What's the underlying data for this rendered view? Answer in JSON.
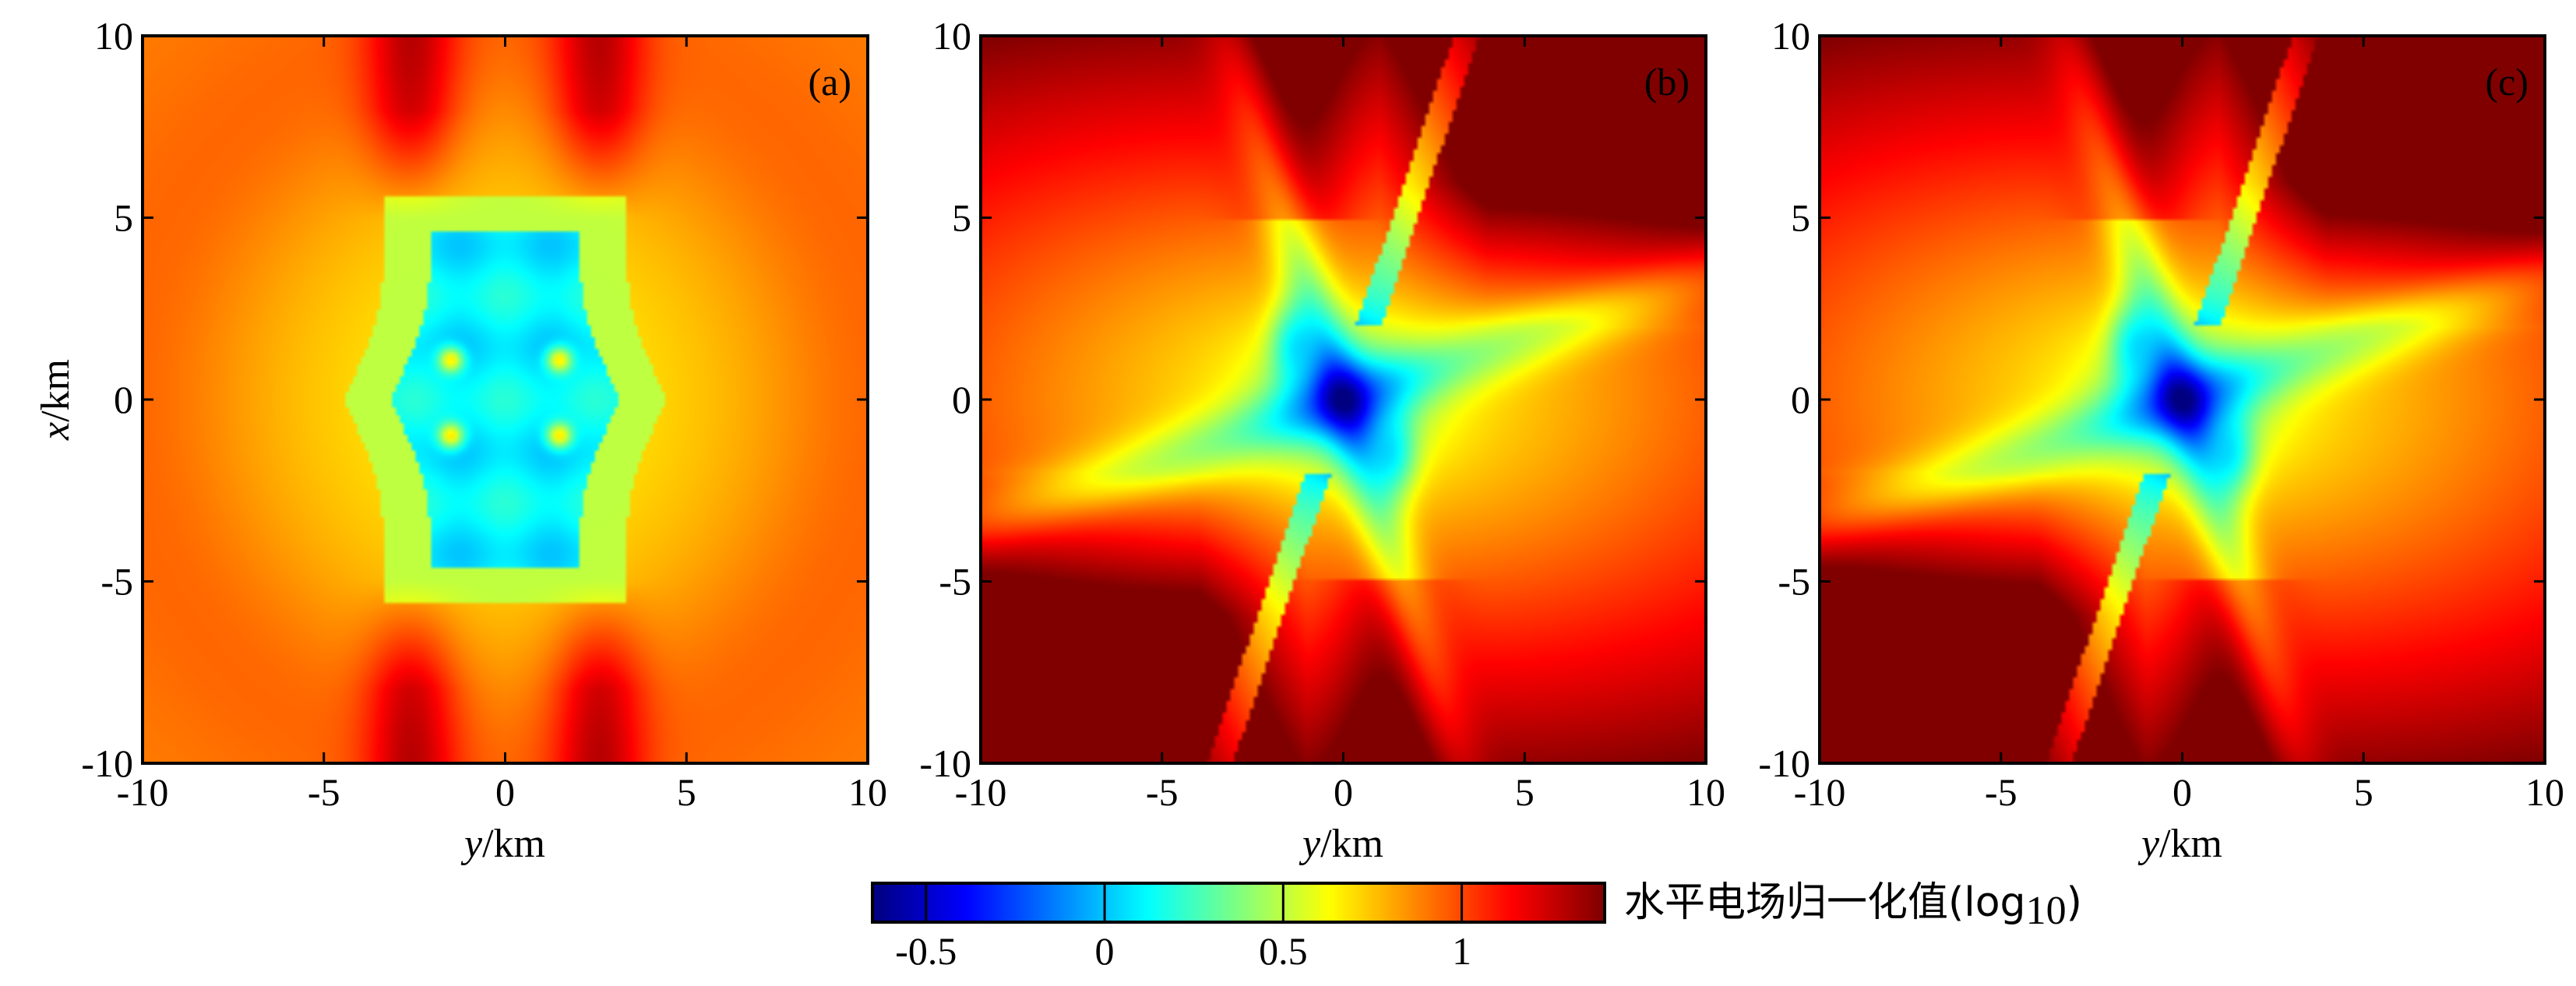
{
  "chart_data": {
    "type": "heatmap",
    "colormap": "jet",
    "color_range": [
      -0.65,
      1.4
    ],
    "panels": [
      {
        "label": "(a)",
        "xlabel_var": "y",
        "xlabel_unit": "/km",
        "ylabel_var": "x",
        "ylabel_unit": "/km",
        "xlim": [
          -10,
          10
        ],
        "ylim": [
          -10,
          10
        ],
        "xticks": [
          "-10",
          "-5",
          "0",
          "5",
          "10"
        ],
        "yticks": [
          "10",
          "5",
          "0",
          "-5",
          "-10"
        ],
        "pattern": "symmetric"
      },
      {
        "label": "(b)",
        "xlabel_var": "y",
        "xlabel_unit": "/km",
        "ylabel_var": "",
        "ylabel_unit": "",
        "xlim": [
          -10,
          10
        ],
        "ylim": [
          -10,
          10
        ],
        "xticks": [
          "-10",
          "-5",
          "0",
          "5",
          "10"
        ],
        "yticks": [
          "10",
          "5",
          "0",
          "-5",
          "-10"
        ],
        "pattern": "tilted"
      },
      {
        "label": "(c)",
        "xlabel_var": "y",
        "xlabel_unit": "/km",
        "ylabel_var": "",
        "ylabel_unit": "",
        "xlim": [
          -10,
          10
        ],
        "ylim": [
          -10,
          10
        ],
        "xticks": [
          "-10",
          "-5",
          "0",
          "5",
          "10"
        ],
        "yticks": [
          "10",
          "5",
          "0",
          "-5",
          "-10"
        ],
        "pattern": "tilted-strong"
      }
    ],
    "colorbar": {
      "title_main": "水平电场归一化值(log",
      "title_sub": "10",
      "title_end": ")",
      "range": [
        -0.65,
        1.4
      ],
      "ticks": [
        -0.5,
        0,
        0.5,
        1
      ],
      "tick_labels": [
        "-0.5",
        "0",
        "0.5",
        "1"
      ]
    }
  }
}
